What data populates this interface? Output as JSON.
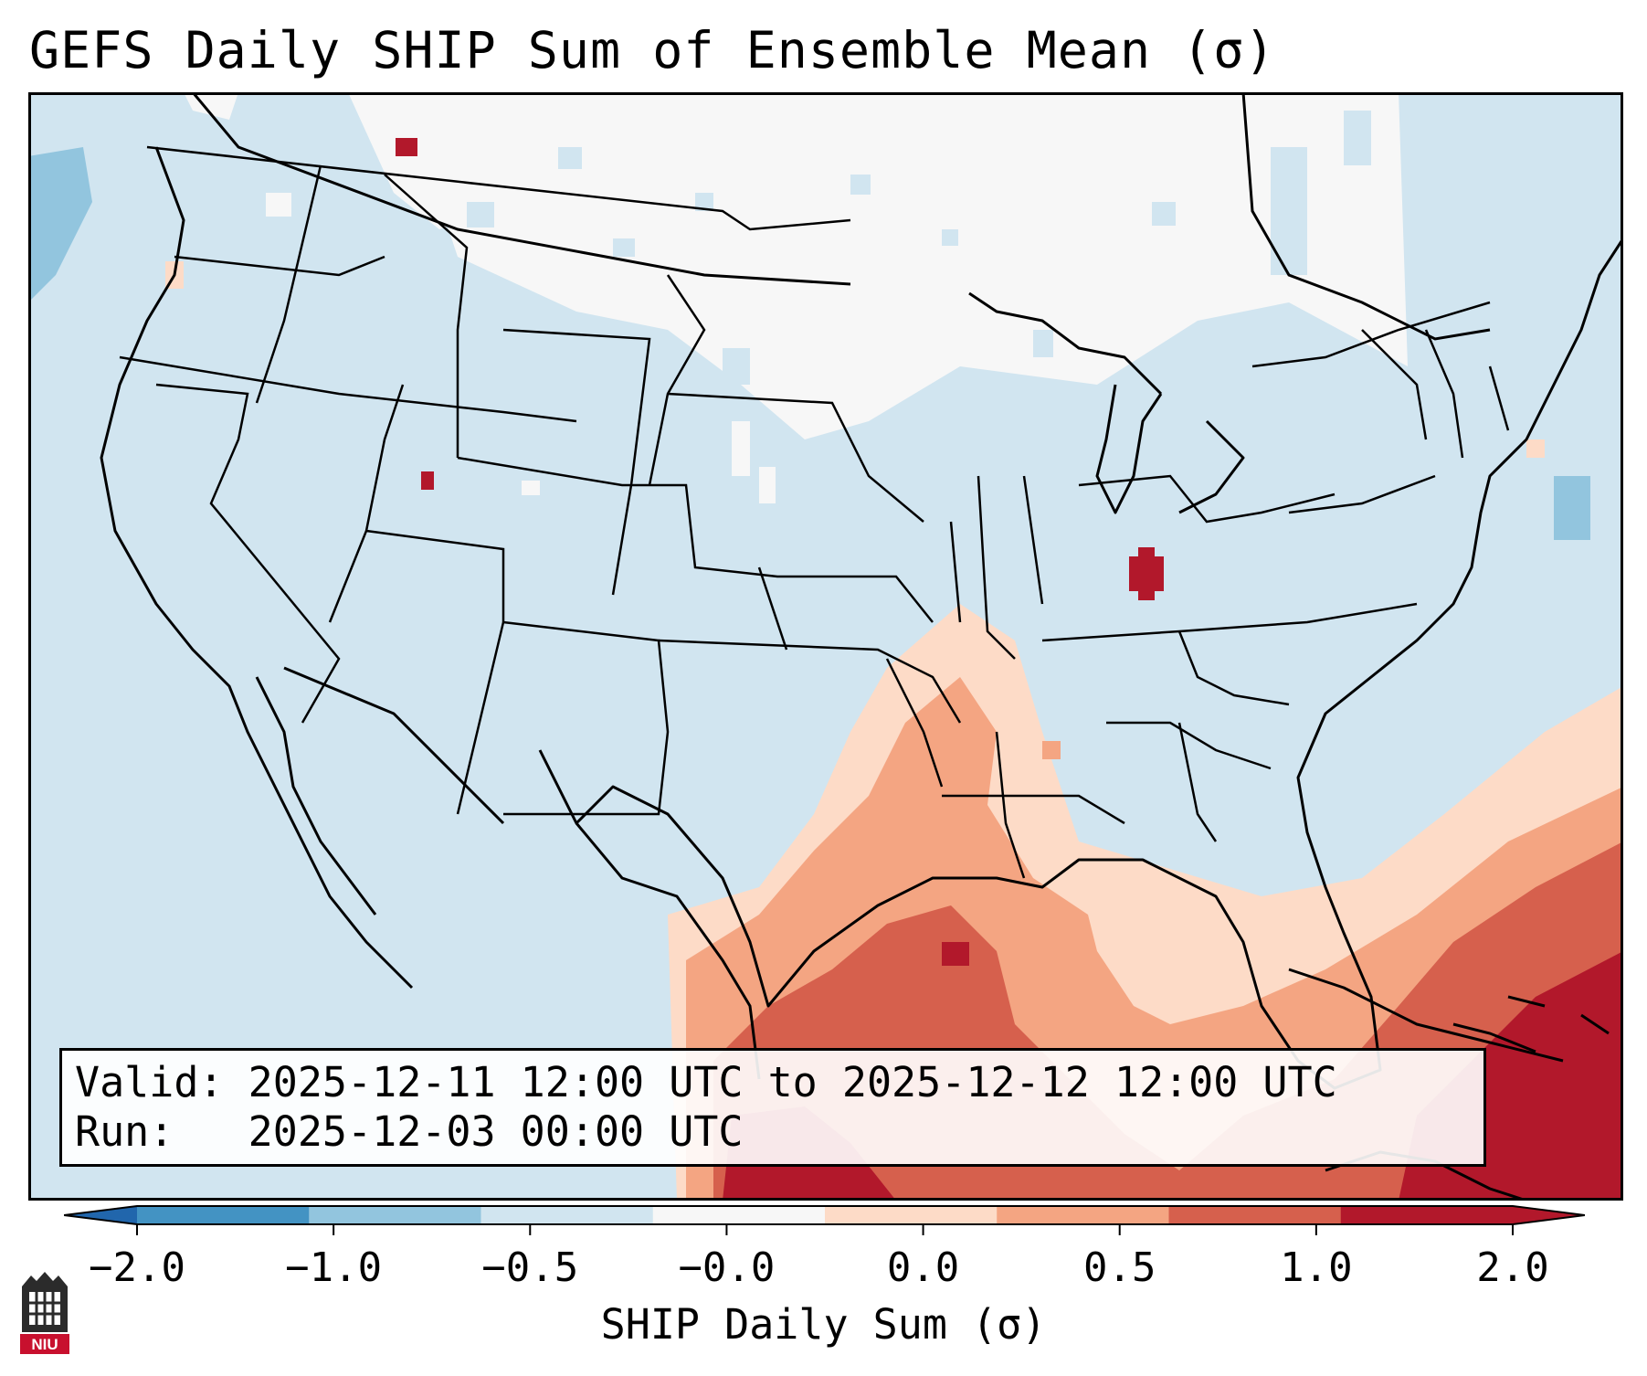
{
  "title": "GEFS Daily SHIP Sum of Ensemble Mean (σ)",
  "info": {
    "valid_line": "Valid: 2025-12-11 12:00 UTC to 2025-12-12 12:00 UTC",
    "run_line": "Run:   2025-12-03 00:00 UTC"
  },
  "colorbar": {
    "label": "SHIP Daily Sum (σ)",
    "tick_labels": [
      "−2.0",
      "−1.0",
      "−0.5",
      "−0.0",
      "0.0",
      "0.5",
      "1.0",
      "2.0"
    ],
    "bin_colors": [
      "#4393c3",
      "#92c5de",
      "#d1e5f0",
      "#f7f7f7",
      "#fddbc7",
      "#f4a582",
      "#d6604d",
      "#b2182b"
    ],
    "under_color": "#2166ac",
    "over_color": "#b2182b"
  },
  "map": {
    "background_color": "#d1e5f0",
    "projection": "Lambert Conformal",
    "region": "Contiguous United States, Gulf of Mexico, western Atlantic",
    "gridded_field": "SHIP Daily Sum (σ)",
    "features": [
      "coastlines",
      "country borders",
      "state borders"
    ]
  },
  "logo": {
    "text": "NIU"
  }
}
